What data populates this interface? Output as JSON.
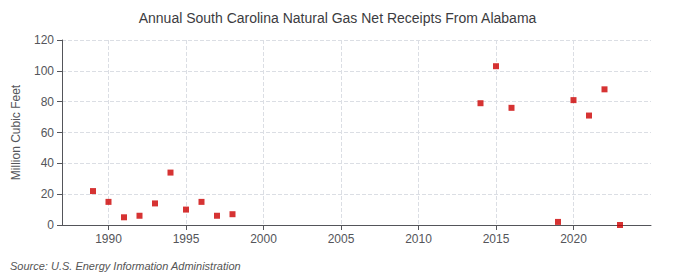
{
  "chart_data": {
    "type": "scatter",
    "title": "Annual South Carolina Natural Gas Net Receipts From Alabama",
    "ylabel": "Million Cubic Feet",
    "annotations": [
      "Source: U.S. Energy Information Administration"
    ],
    "x": [
      1989,
      1990,
      1991,
      1992,
      1993,
      1994,
      1995,
      1996,
      1997,
      1998,
      2014,
      2015,
      2016,
      2019,
      2020,
      2021,
      2022,
      2023
    ],
    "values": [
      22,
      15,
      5,
      6,
      14,
      34,
      10,
      15,
      6,
      7,
      79,
      103,
      76,
      2,
      81,
      71,
      88,
      0
    ],
    "color": "#cc0000",
    "marker": "square",
    "xlim": [
      1987,
      2025
    ],
    "ylim": [
      0,
      120
    ],
    "xticks": [
      1990,
      1995,
      2000,
      2005,
      2010,
      2015,
      2020
    ],
    "yticks": [
      0,
      20,
      40,
      60,
      80,
      100,
      120
    ],
    "grid": true
  }
}
